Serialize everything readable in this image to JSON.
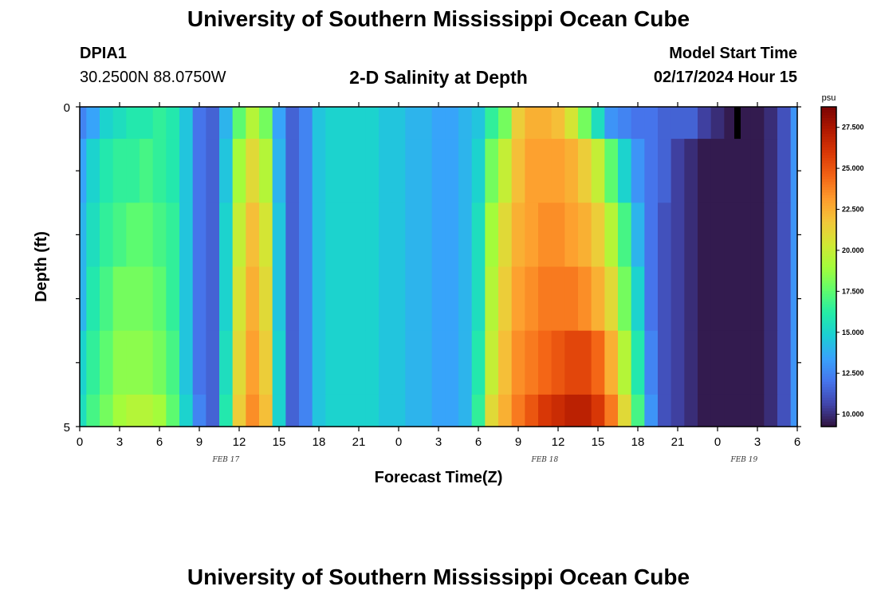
{
  "header": {
    "title": "University of Southern Mississippi Ocean Cube",
    "station": "DPIA1",
    "coords": "30.2500N  88.0750W",
    "subtitle": "2-D Salinity at Depth",
    "run_label": "Model Start Time",
    "run_time": "02/17/2024 Hour 15"
  },
  "footer": {
    "title": "University of Southern Mississippi Ocean Cube"
  },
  "chart_data": {
    "type": "heatmap",
    "title": "2-D Salinity at Depth",
    "xlabel": "Forecast Time(Z)",
    "ylabel": "Depth (ft)",
    "x_tick_labels": [
      "0",
      "3",
      "6",
      "9",
      "12",
      "15",
      "18",
      "21",
      "0",
      "3",
      "6",
      "9",
      "12",
      "15",
      "18",
      "21",
      "0",
      "3",
      "6"
    ],
    "x_range_hours": [
      0,
      54
    ],
    "date_labels": [
      {
        "label": "FEB 17",
        "hour": 11
      },
      {
        "label": "FEB 18",
        "hour": 35
      },
      {
        "label": "FEB 19",
        "hour": 50
      }
    ],
    "y_tick_labels": [
      "0",
      "5"
    ],
    "ylim": [
      0,
      5
    ],
    "depth_levels": [
      0,
      1,
      2,
      3,
      4,
      5
    ],
    "colorbar": {
      "unit": "psu",
      "min": 9.25,
      "max": 28.75,
      "tick_labels": [
        "27.500",
        "25.000",
        "22.500",
        "20.000",
        "17.500",
        "15.000",
        "12.500",
        "10.000"
      ],
      "tick_values": [
        27.5,
        25.0,
        22.5,
        20.0,
        17.5,
        15.0,
        12.5,
        10.0
      ],
      "colors": [
        "#30123b",
        "#4145ab",
        "#4675ed",
        "#39a2fc",
        "#1bcfd4",
        "#24eca6",
        "#61fc6c",
        "#a4fc3b",
        "#d1e834",
        "#f3c63a",
        "#fe9b2d",
        "#f36315",
        "#d93806",
        "#b11901",
        "#7a0403"
      ]
    },
    "hours": [
      0,
      1,
      2,
      3,
      4,
      5,
      6,
      7,
      8,
      9,
      10,
      11,
      12,
      13,
      14,
      15,
      16,
      17,
      18,
      19,
      20,
      21,
      22,
      23,
      24,
      25,
      26,
      27,
      28,
      29,
      30,
      31,
      32,
      33,
      34,
      35,
      36,
      37,
      38,
      39,
      40,
      41,
      42,
      43,
      44,
      45,
      46,
      47,
      48,
      49,
      50,
      51,
      52,
      53,
      54
    ],
    "salinity_by_depth": [
      {
        "depth_band": "0-0.5",
        "values": [
          12.5,
          13.5,
          15,
          15.5,
          16,
          16,
          16.5,
          16,
          14.5,
          12,
          11.5,
          14,
          17.5,
          19.5,
          18,
          13.5,
          11.5,
          12.5,
          14.5,
          15,
          15,
          15,
          15,
          14.5,
          14.5,
          14,
          14,
          13.5,
          13.5,
          14,
          14.5,
          16.5,
          18,
          21.5,
          22.5,
          22.5,
          22,
          20.5,
          18,
          15.5,
          13,
          12.5,
          12,
          12,
          11.5,
          11.5,
          11.5,
          10.5,
          10,
          9.5,
          9.5,
          9.5,
          10,
          11,
          13
        ]
      },
      {
        "depth_band": "0.5-1.5",
        "values": [
          13.5,
          15,
          16,
          16.5,
          16.5,
          17,
          16.5,
          16,
          14.5,
          12,
          11.5,
          14.5,
          19,
          21,
          19.5,
          14,
          11.5,
          12.5,
          14.5,
          15,
          15,
          15,
          15,
          14.5,
          14.5,
          14,
          14,
          13.5,
          13.5,
          14,
          15,
          18,
          20,
          22,
          23,
          23,
          23,
          22.5,
          21.5,
          20,
          17.5,
          15,
          13,
          12,
          11.5,
          10.5,
          10,
          9.5,
          9.5,
          9.5,
          9.5,
          9.5,
          10,
          11,
          13
        ]
      },
      {
        "depth_band": "1.5-2.5",
        "values": [
          14,
          15.5,
          16.5,
          17,
          17.5,
          17.5,
          17,
          16.5,
          14.5,
          12,
          11.5,
          15,
          20,
          22,
          20.5,
          14.5,
          11.5,
          12.5,
          14.5,
          15,
          15,
          15,
          15,
          14.5,
          14.5,
          14,
          14,
          13.5,
          13.5,
          14,
          15.5,
          19,
          21,
          22.5,
          23,
          23.5,
          23.5,
          23,
          22.5,
          21.5,
          19.5,
          17,
          14,
          12,
          11,
          10.5,
          10,
          9.5,
          9.5,
          9.5,
          9.5,
          9.5,
          10,
          11,
          13
        ]
      },
      {
        "depth_band": "2.5-3.5",
        "values": [
          14,
          16,
          17,
          18,
          18,
          18,
          17.5,
          16.5,
          14.5,
          12,
          11.5,
          15,
          20.5,
          22.5,
          21,
          14.5,
          11.5,
          12.5,
          14.5,
          15,
          15,
          15,
          15,
          14.5,
          14.5,
          14,
          14,
          13.5,
          13.5,
          14,
          15.5,
          19.5,
          21.5,
          23,
          23.5,
          24,
          24,
          24,
          23.5,
          22.5,
          21,
          18,
          15,
          12,
          11,
          10.5,
          10,
          9.5,
          9.5,
          9.5,
          9.5,
          9.5,
          10,
          11,
          13
        ]
      },
      {
        "depth_band": "3.5-4.5",
        "values": [
          15,
          16.5,
          17.5,
          18.5,
          18.5,
          18.5,
          18,
          17,
          14.5,
          12,
          11.5,
          15.5,
          21,
          23,
          21.5,
          15,
          11.5,
          12.5,
          14.5,
          15,
          15,
          15,
          15,
          14.5,
          14.5,
          14,
          14,
          13.5,
          13.5,
          14,
          16,
          20,
          22,
          23.5,
          24,
          24.5,
          25,
          25.5,
          25.5,
          24.5,
          22.5,
          19.5,
          16,
          12.5,
          11,
          10.5,
          10,
          9.5,
          9.5,
          9.5,
          9.5,
          9.5,
          10,
          11,
          13
        ]
      },
      {
        "depth_band": "4.5-5",
        "values": [
          15.5,
          17,
          18,
          19,
          19.5,
          19.5,
          19,
          17.5,
          15,
          12.5,
          11.5,
          16,
          21.5,
          23.5,
          22,
          15,
          11.5,
          12.5,
          14.5,
          15,
          15,
          15,
          15,
          14.5,
          14.5,
          14,
          14,
          13.5,
          13.5,
          14,
          16.5,
          21,
          22.5,
          24,
          25,
          26,
          26.5,
          27,
          27,
          26,
          24,
          21,
          17,
          13,
          11,
          10.5,
          10,
          9.5,
          9.5,
          9.5,
          9.5,
          9.5,
          10,
          11,
          13
        ]
      }
    ],
    "missing_cell": {
      "hour": 49.5,
      "depth_band": "0-0.5"
    }
  }
}
